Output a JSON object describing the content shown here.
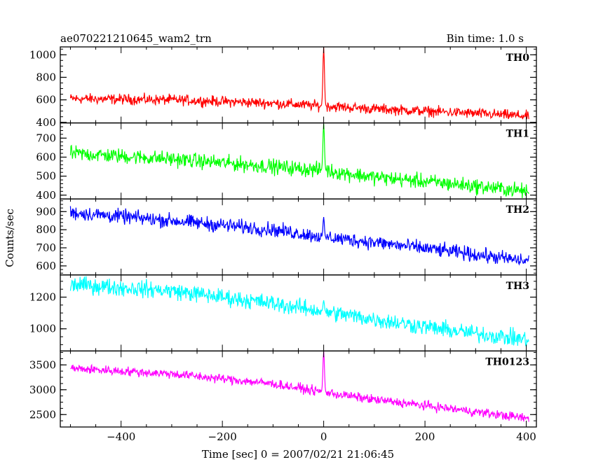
{
  "header": {
    "title": "ae070221210645_wam2_trn",
    "bin_time": "Bin time: 1.0 s"
  },
  "chart_data": {
    "type": "line",
    "xlabel": "Time [sec] 0 = 2007/02/21 21:06:45",
    "ylabel": "Counts/sec",
    "xlim": [
      -520,
      420
    ],
    "xticks": [
      -400,
      -200,
      0,
      200,
      400
    ],
    "x_range": [
      -500,
      405
    ],
    "series": [
      {
        "name": "TH0",
        "color": "#ff0000",
        "ylim": [
          395,
          1070
        ],
        "yticks": [
          400,
          600,
          800,
          1000
        ],
        "trend": [
          [
            -500,
            610
          ],
          [
            -300,
            600
          ],
          [
            -100,
            570
          ],
          [
            0,
            545
          ],
          [
            100,
            520
          ],
          [
            250,
            490
          ],
          [
            405,
            455
          ]
        ],
        "noise": 35,
        "peak": {
          "x": 0,
          "y": 1065,
          "width": 5
        }
      },
      {
        "name": "TH1",
        "color": "#00ff00",
        "ylim": [
          380,
          780
        ],
        "yticks": [
          400,
          500,
          600,
          700
        ],
        "trend": [
          [
            -500,
            620
          ],
          [
            -300,
            590
          ],
          [
            -100,
            550
          ],
          [
            0,
            530
          ],
          [
            100,
            495
          ],
          [
            250,
            460
          ],
          [
            405,
            420
          ]
        ],
        "noise": 30,
        "peak": {
          "x": 0,
          "y": 775,
          "width": 5
        }
      },
      {
        "name": "TH2",
        "color": "#0000ff",
        "ylim": [
          550,
          970
        ],
        "yticks": [
          600,
          700,
          800,
          900
        ],
        "trend": [
          [
            -500,
            895
          ],
          [
            -300,
            850
          ],
          [
            -100,
            800
          ],
          [
            0,
            760
          ],
          [
            100,
            730
          ],
          [
            250,
            680
          ],
          [
            405,
            625
          ]
        ],
        "noise": 30,
        "peak": {
          "x": 0,
          "y": 870,
          "width": 4
        }
      },
      {
        "name": "TH3",
        "color": "#00ffff",
        "ylim": [
          860,
          1340
        ],
        "yticks": [
          1000,
          1200
        ],
        "trend": [
          [
            -500,
            1280
          ],
          [
            -300,
            1240
          ],
          [
            -100,
            1160
          ],
          [
            0,
            1110
          ],
          [
            100,
            1060
          ],
          [
            250,
            990
          ],
          [
            405,
            930
          ]
        ],
        "noise": 40,
        "peak": {
          "x": 0,
          "y": 1180,
          "width": 4
        }
      },
      {
        "name": "TH0123",
        "color": "#ff00ff",
        "ylim": [
          2250,
          3780
        ],
        "yticks": [
          2500,
          3000,
          3500
        ],
        "trend": [
          [
            -500,
            3430
          ],
          [
            -300,
            3320
          ],
          [
            -100,
            3120
          ],
          [
            0,
            2950
          ],
          [
            100,
            2800
          ],
          [
            250,
            2620
          ],
          [
            405,
            2420
          ]
        ],
        "noise": 70,
        "peak": {
          "x": 0,
          "y": 3770,
          "width": 5
        }
      }
    ]
  }
}
